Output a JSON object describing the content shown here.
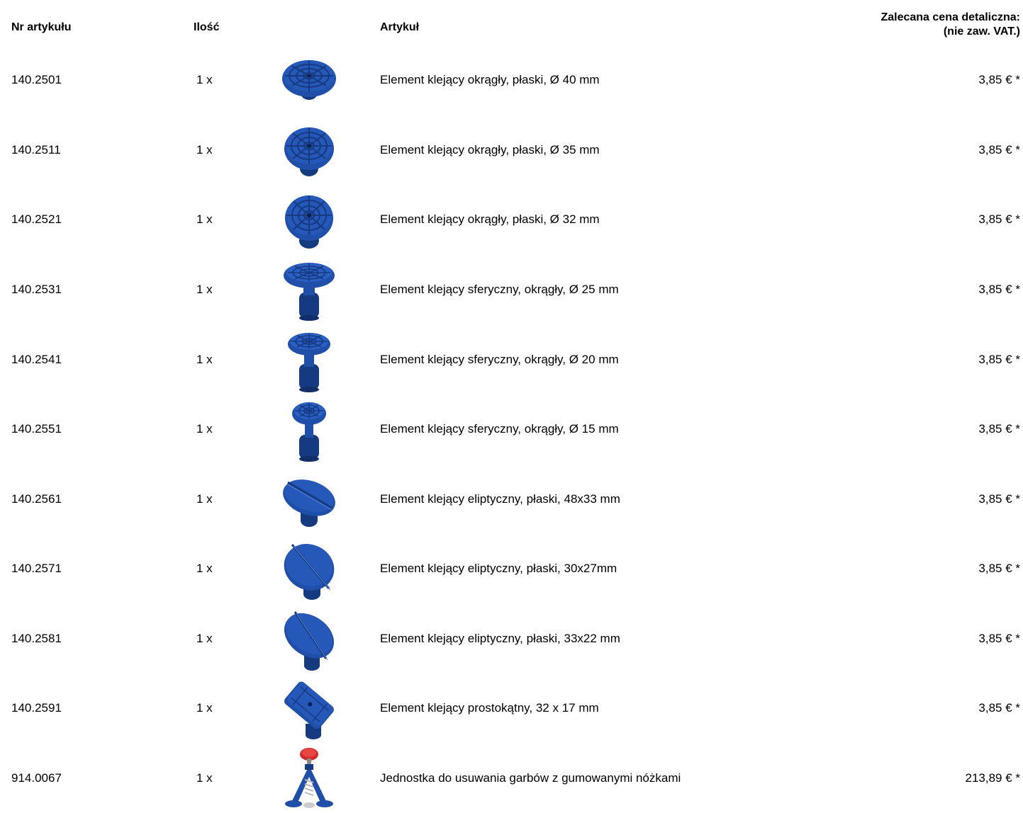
{
  "header": {
    "artno": "Nr artykułu",
    "qty": "Ilość",
    "article": "Artykuł",
    "price_line1": "Zalecana cena detaliczna:",
    "price_line2": "(nie zaw. VAT.)"
  },
  "colors": {
    "product_blue": "#1f4fa8",
    "product_blue_dark": "#163a80",
    "knob_red": "#d42a2a"
  },
  "rows": [
    {
      "artno": "140.2501",
      "qty": "1 x",
      "desc": "Element klejący okrągły, płaski, Ø 40 mm",
      "price": "3,85 € *",
      "icon": "round-flat-glue-tab-icon"
    },
    {
      "artno": "140.2511",
      "qty": "1 x",
      "desc": "Element klejący okrągły, płaski, Ø 35 mm",
      "price": "3,85 € *",
      "icon": "round-flat-glue-tab-icon"
    },
    {
      "artno": "140.2521",
      "qty": "1 x",
      "desc": "Element klejący okrągły, płaski, Ø 32 mm",
      "price": "3,85 € *",
      "icon": "round-flat-glue-tab-icon"
    },
    {
      "artno": "140.2531",
      "qty": "1 x",
      "desc": "Element klejący sferyczny, okrągły, Ø 25 mm",
      "price": "3,85 € *",
      "icon": "spherical-glue-tab-icon"
    },
    {
      "artno": "140.2541",
      "qty": "1 x",
      "desc": "Element klejący sferyczny, okrągły, Ø 20 mm",
      "price": "3,85 € *",
      "icon": "spherical-glue-tab-icon"
    },
    {
      "artno": "140.2551",
      "qty": "1 x",
      "desc": "Element klejący sferyczny, okrągły, Ø 15 mm",
      "price": "3,85 € *",
      "icon": "spherical-glue-tab-icon"
    },
    {
      "artno": "140.2561",
      "qty": "1 x",
      "desc": "Element klejący eliptyczny, płaski, 48x33 mm",
      "price": "3,85 € *",
      "icon": "elliptical-glue-tab-icon"
    },
    {
      "artno": "140.2571",
      "qty": "1 x",
      "desc": "Element klejący eliptyczny, płaski, 30x27mm",
      "price": "3,85 € *",
      "icon": "elliptical-glue-tab-icon"
    },
    {
      "artno": "140.2581",
      "qty": "1 x",
      "desc": "Element klejący eliptyczny, płaski, 33x22 mm",
      "price": "3,85 € *",
      "icon": "elliptical-glue-tab-icon"
    },
    {
      "artno": "140.2591",
      "qty": "1 x",
      "desc": "Element klejący prostokątny, 32 x 17 mm",
      "price": "3,85 € *",
      "icon": "rectangular-glue-tab-icon"
    },
    {
      "artno": "914.0067",
      "qty": "1 x",
      "desc": "Jednostka do usuwania garbów z gumowanymi nóżkami",
      "price": "213,89 € *",
      "icon": "dent-puller-bridge-icon"
    }
  ]
}
